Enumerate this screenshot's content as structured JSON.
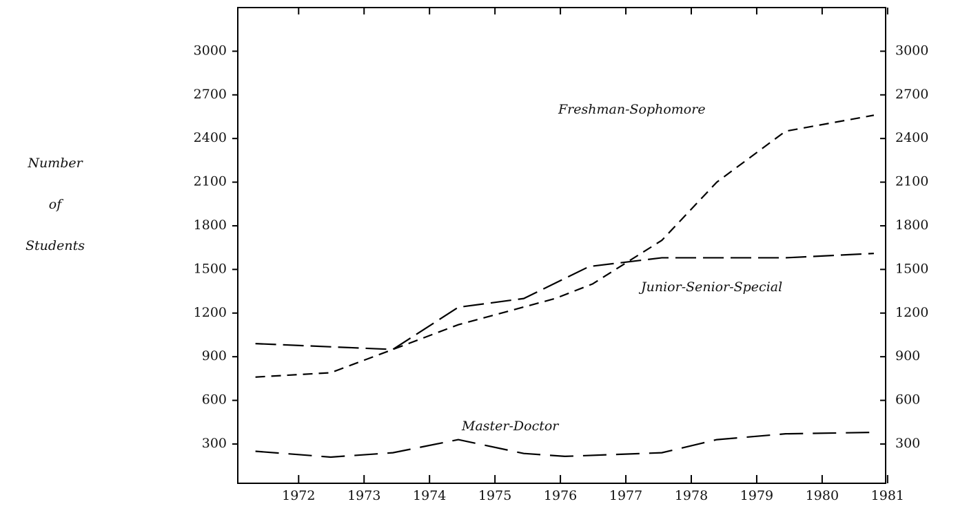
{
  "chart_data": {
    "type": "line",
    "ylabel": [
      "Number",
      "of",
      "Students"
    ],
    "xlim": [
      1971.07,
      1980.97
    ],
    "xticks": [
      1972,
      1973,
      1974,
      1975,
      1976,
      1977,
      1978,
      1979,
      1980,
      1981
    ],
    "ylim": [
      30,
      3300
    ],
    "yticks": [
      300,
      600,
      900,
      1200,
      1500,
      1800,
      2100,
      2400,
      2700,
      3000
    ],
    "y2lim": [
      30,
      3300
    ],
    "y2ticks": [
      300,
      600,
      900,
      1200,
      1500,
      1800,
      2100,
      2400,
      2700,
      3000
    ],
    "series": [
      {
        "name": "Freshman-Sophomore",
        "color": "#000000",
        "x": [
          1971.34,
          1972.49,
          1973.44,
          1974.44,
          1975.92,
          1976.49,
          1977.55,
          1978.39,
          1979.44,
          1980.79
        ],
        "values": [
          760,
          790,
          950,
          1120,
          1300,
          1400,
          1700,
          2100,
          2450,
          2560
        ]
      },
      {
        "name": "Junior-Senior-Special",
        "color": "#000000",
        "x": [
          1971.34,
          1973.44,
          1974.44,
          1975.44,
          1976.44,
          1977.55,
          1979.44,
          1980.79
        ],
        "values": [
          990,
          950,
          1240,
          1300,
          1520,
          1580,
          1580,
          1610
        ]
      },
      {
        "name": "Master-Doctor",
        "color": "#000000",
        "x": [
          1971.34,
          1972.49,
          1973.44,
          1974.44,
          1975.44,
          1976.07,
          1977.55,
          1978.39,
          1979.44,
          1980.79
        ],
        "values": [
          250,
          210,
          240,
          330,
          235,
          215,
          240,
          330,
          370,
          380
        ]
      }
    ]
  }
}
